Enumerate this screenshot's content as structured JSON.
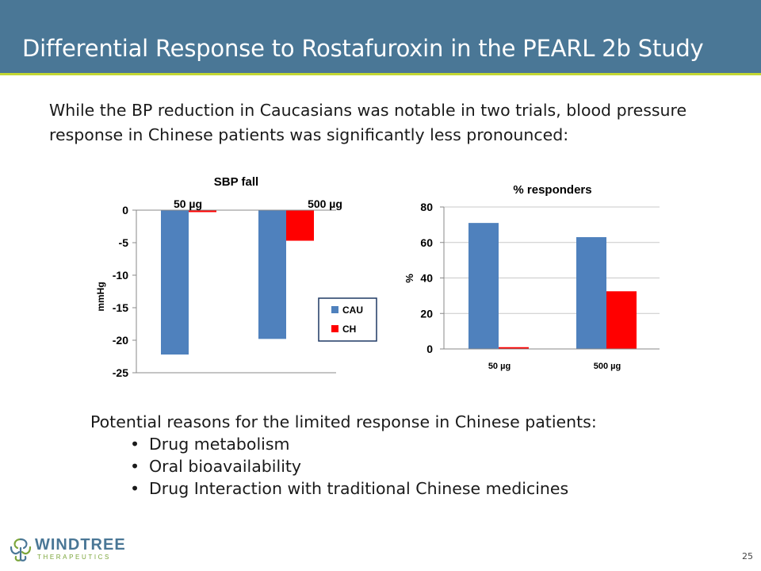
{
  "slide": {
    "title": "Differential Response to Rostafuroxin in the PEARL 2b Study",
    "intro": "While the BP reduction in Caucasians was notable in two trials, blood pressure response in Chinese patients was significantly less pronounced:",
    "reasons_title": "Potential reasons for the limited response in Chinese patients:",
    "reasons": [
      "Drug metabolism",
      "Oral bioavailability",
      "Drug Interaction with traditional Chinese medicines"
    ],
    "page_number": "25",
    "bullet_glyph": "•"
  },
  "logo": {
    "name": "WINDTREE",
    "sub": "THERAPEUTICS"
  },
  "colors": {
    "header": "#4a7796",
    "accent_line": "#c3d733",
    "cau": "#4f81bd",
    "ch": "#ff0000",
    "logo_green": "#7ba53a"
  },
  "chart_data": [
    {
      "type": "bar",
      "title": "SBP fall",
      "ylabel": "mmHg",
      "xlabel": "",
      "categories": [
        "50 µg",
        "500 µg"
      ],
      "series": [
        {
          "name": "CAU",
          "color": "#4f81bd",
          "values": [
            -22.2,
            -19.8
          ]
        },
        {
          "name": "CH",
          "color": "#ff0000",
          "values": [
            -0.3,
            -4.7
          ]
        }
      ],
      "ylim": [
        -25,
        0
      ],
      "yticks": [
        "0",
        "-5",
        "-10",
        "-15",
        "-20",
        "-25"
      ],
      "legend": "bottom-right",
      "grid": false
    },
    {
      "type": "bar",
      "title": "% responders",
      "ylabel": "%",
      "xlabel": "",
      "categories": [
        "50 µg",
        "500 µg"
      ],
      "series": [
        {
          "color": "#4f81bd",
          "values": [
            71,
            63
          ]
        },
        {
          "color": "#ff0000",
          "values": [
            1,
            32.5
          ]
        }
      ],
      "ylim": [
        0,
        80
      ],
      "yticks": [
        "80",
        "60",
        "40",
        "20",
        "0"
      ],
      "grid": true
    }
  ]
}
